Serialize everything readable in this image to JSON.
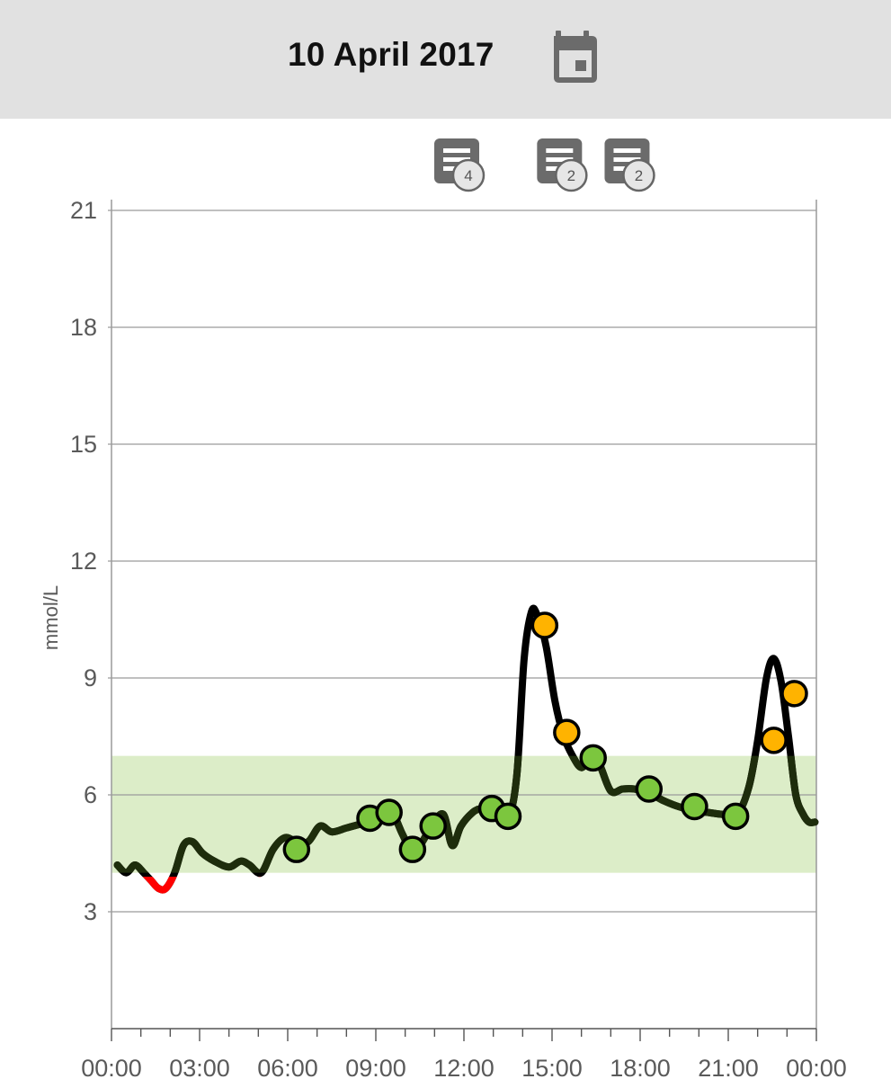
{
  "header": {
    "date": "10 April 2017",
    "calendar_icon": "calendar-icon"
  },
  "notes": [
    {
      "time": 12.0,
      "count": "4",
      "icon": "note-icon"
    },
    {
      "time": 15.5,
      "count": "2",
      "icon": "note-icon"
    },
    {
      "time": 17.8,
      "count": "2",
      "icon": "note-icon"
    }
  ],
  "chart_data": {
    "type": "line",
    "ylabel": "mmol/L",
    "xlabel": "",
    "x_ticks": [
      "00:00",
      "03:00",
      "06:00",
      "09:00",
      "12:00",
      "15:00",
      "18:00",
      "21:00",
      "00:00"
    ],
    "y_ticks": [
      3,
      6,
      9,
      12,
      15,
      18,
      21
    ],
    "xlim": [
      0,
      24
    ],
    "ylim": [
      0,
      21
    ],
    "target_range": [
      4.0,
      7.0
    ],
    "low_threshold": 3.9,
    "grid": true,
    "colors": {
      "line": "#000000",
      "line_in_range": "#1e2d0c",
      "line_low": "#ff0000",
      "target_band": "#dcedc8",
      "point_in_range": "#7cc63e",
      "point_high": "#ffb300",
      "grid": "#9a9a9a"
    },
    "series": [
      {
        "type": "line",
        "x": [
          0.2,
          0.5,
          0.8,
          1.1,
          1.35,
          1.6,
          1.85,
          2.15,
          2.45,
          2.75,
          3.1,
          3.5,
          4.0,
          4.4,
          4.7,
          5.1,
          5.5,
          5.9,
          6.3,
          6.7,
          7.1,
          7.5,
          8.0,
          8.5,
          9.0,
          9.3,
          9.6,
          9.9,
          10.2,
          10.5,
          10.9,
          11.3,
          11.6,
          11.9,
          12.3,
          12.6,
          13.0,
          13.5,
          13.8,
          14.05,
          14.3,
          14.5,
          14.8,
          15.1,
          15.4,
          15.7,
          16.0,
          16.3,
          16.6,
          17.0,
          17.4,
          17.8,
          18.3,
          18.8,
          19.3,
          19.8,
          20.3,
          20.8,
          21.3,
          21.7,
          22.0,
          22.3,
          22.55,
          22.8,
          23.05,
          23.3,
          23.55,
          23.75,
          23.95
        ],
        "y": [
          4.2,
          4.0,
          4.2,
          4.0,
          3.8,
          3.6,
          3.6,
          4.0,
          4.7,
          4.8,
          4.5,
          4.3,
          4.15,
          4.3,
          4.2,
          4.0,
          4.6,
          4.9,
          4.8,
          4.8,
          5.2,
          5.05,
          5.15,
          5.25,
          5.3,
          5.65,
          5.5,
          5.0,
          4.6,
          4.7,
          5.2,
          5.5,
          4.7,
          5.2,
          5.55,
          5.65,
          5.65,
          5.45,
          6.5,
          9.5,
          10.7,
          10.6,
          9.8,
          8.4,
          7.5,
          7.0,
          6.7,
          6.95,
          6.8,
          6.1,
          6.15,
          6.15,
          6.05,
          5.85,
          5.7,
          5.6,
          5.55,
          5.5,
          5.5,
          6.2,
          7.4,
          9.0,
          9.5,
          8.9,
          7.5,
          6.0,
          5.5,
          5.3,
          5.3
        ]
      }
    ],
    "points": [
      {
        "x": 6.3,
        "y": 4.6,
        "status": "in-range"
      },
      {
        "x": 8.8,
        "y": 5.4,
        "status": "in-range"
      },
      {
        "x": 9.45,
        "y": 5.55,
        "status": "in-range"
      },
      {
        "x": 10.25,
        "y": 4.6,
        "status": "in-range"
      },
      {
        "x": 10.95,
        "y": 5.2,
        "status": "in-range"
      },
      {
        "x": 12.95,
        "y": 5.65,
        "status": "in-range"
      },
      {
        "x": 13.5,
        "y": 5.45,
        "status": "in-range"
      },
      {
        "x": 14.75,
        "y": 10.35,
        "status": "high"
      },
      {
        "x": 15.5,
        "y": 7.6,
        "status": "high"
      },
      {
        "x": 16.4,
        "y": 6.95,
        "status": "in-range"
      },
      {
        "x": 18.3,
        "y": 6.15,
        "status": "in-range"
      },
      {
        "x": 19.85,
        "y": 5.7,
        "status": "in-range"
      },
      {
        "x": 21.25,
        "y": 5.45,
        "status": "in-range"
      },
      {
        "x": 22.55,
        "y": 7.4,
        "status": "high"
      },
      {
        "x": 23.25,
        "y": 8.6,
        "status": "high"
      }
    ]
  }
}
